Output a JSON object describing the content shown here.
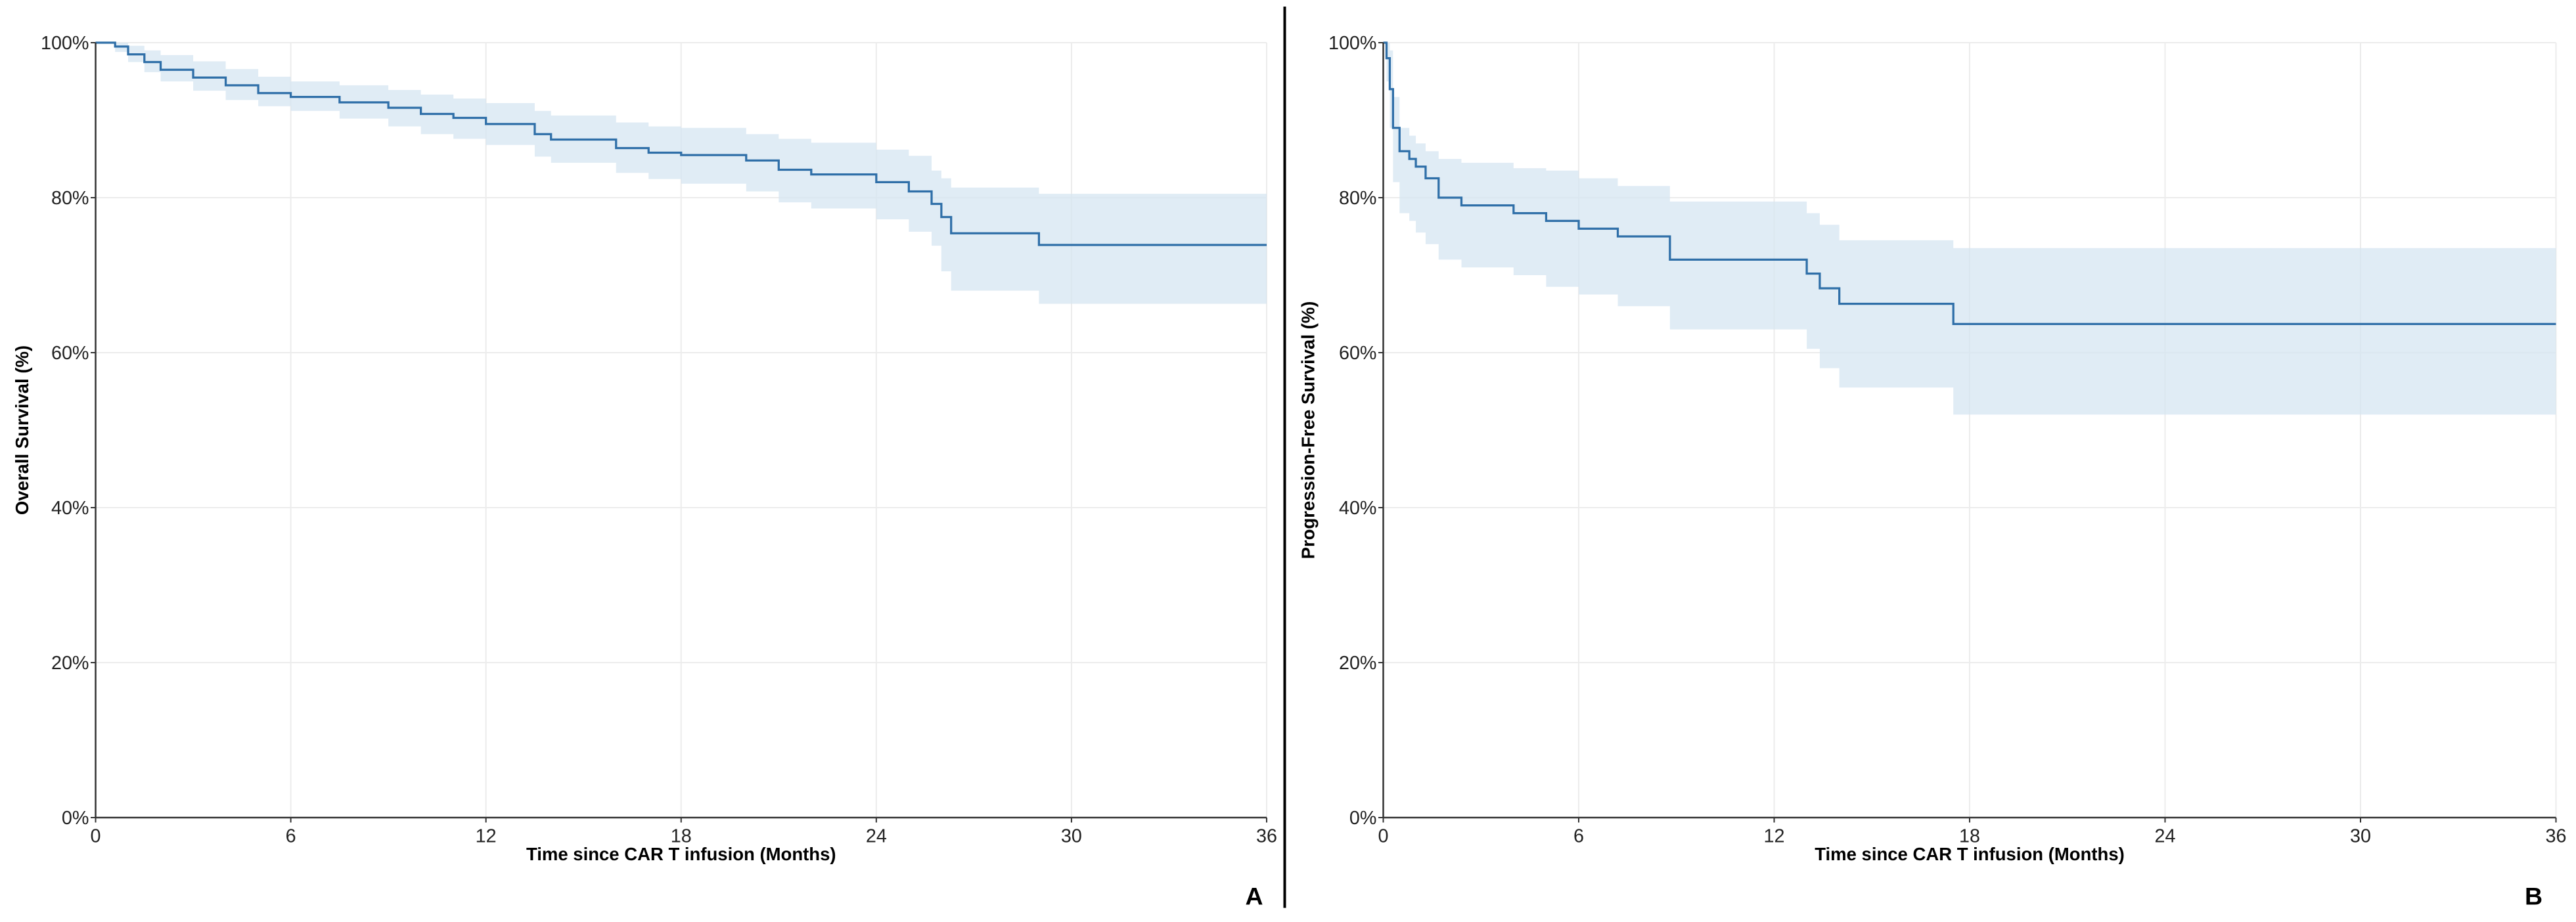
{
  "colors": {
    "line": "#2f6fa8",
    "band": "#d6e5f2",
    "grid": "#ececec",
    "axis": "#333333"
  },
  "chart_data": [
    {
      "type": "line",
      "subtype": "kaplan-meier-step",
      "panel_label": "A",
      "xlabel": "Time since CAR T infusion (Months)",
      "ylabel": "Overall Survival (%)",
      "xlim": [
        0,
        36
      ],
      "ylim": [
        0,
        100
      ],
      "xticks": [
        "0",
        "6",
        "12",
        "18",
        "24",
        "30",
        "36"
      ],
      "yticks": [
        "0%",
        "20%",
        "40%",
        "60%",
        "80%",
        "100%"
      ],
      "grid": true,
      "series": [
        {
          "name": "Overall Survival",
          "time": [
            0,
            0.6,
            1,
            1.5,
            2,
            3,
            4,
            5,
            6,
            7.5,
            9,
            10,
            11,
            12,
            13.5,
            14,
            16,
            17,
            18,
            20,
            21,
            22,
            24,
            25,
            25.7,
            26,
            26.3,
            29,
            36
          ],
          "surv": [
            100,
            99.5,
            98.5,
            97.5,
            96.5,
            95.5,
            94.5,
            93.5,
            93.0,
            92.3,
            91.6,
            90.8,
            90.3,
            89.5,
            88.2,
            87.5,
            86.4,
            85.8,
            85.5,
            84.8,
            83.6,
            83.0,
            82.0,
            80.8,
            79.2,
            77.5,
            75.4,
            73.9,
            73.9
          ],
          "lower": [
            100,
            98.8,
            97.5,
            96.2,
            95,
            93.8,
            92.6,
            91.8,
            91.2,
            90.2,
            89.2,
            88.2,
            87.6,
            86.8,
            85.3,
            84.5,
            83.2,
            82.4,
            81.8,
            80.8,
            79.4,
            78.6,
            77.2,
            75.6,
            73.8,
            70.5,
            68,
            66.3,
            66.3
          ],
          "upper": [
            100,
            100,
            99.6,
            99,
            98.4,
            97.6,
            96.6,
            95.6,
            95.0,
            94.5,
            93.9,
            93.3,
            92.8,
            92.2,
            91.2,
            90.6,
            89.7,
            89.2,
            89.0,
            88.2,
            87.6,
            87.1,
            86.2,
            85.4,
            83.5,
            82.5,
            81.3,
            80.5,
            80.5
          ]
        }
      ]
    },
    {
      "type": "line",
      "subtype": "kaplan-meier-step",
      "panel_label": "B",
      "xlabel": "Time since CAR T infusion (Months)",
      "ylabel": "Progression-Free Survival (%)",
      "xlim": [
        0,
        36
      ],
      "ylim": [
        0,
        100
      ],
      "xticks": [
        "0",
        "6",
        "12",
        "18",
        "24",
        "30",
        "36"
      ],
      "yticks": [
        "0%",
        "20%",
        "40%",
        "60%",
        "80%",
        "100%"
      ],
      "grid": true,
      "series": [
        {
          "name": "Progression-Free Survival",
          "time": [
            0,
            0.1,
            0.2,
            0.3,
            0.5,
            0.8,
            1.0,
            1.3,
            1.7,
            2.4,
            4.0,
            5.0,
            6.0,
            7.2,
            8.8,
            13.0,
            13.4,
            14.0,
            17.5,
            36
          ],
          "surv": [
            100,
            98,
            94,
            89,
            86,
            85,
            84,
            82.5,
            80,
            79,
            78,
            77,
            76,
            75,
            72,
            70.2,
            68.3,
            66.3,
            63.7,
            63.7
          ],
          "lower": [
            100,
            95,
            89,
            82,
            78,
            77,
            75.5,
            74,
            72,
            71,
            70,
            68.5,
            67.5,
            66,
            63,
            60.5,
            58,
            55.5,
            52,
            52
          ],
          "upper": [
            100,
            100,
            99,
            93,
            89,
            88,
            87,
            86,
            85,
            84.5,
            83.8,
            83.5,
            82.5,
            81.5,
            79.5,
            78,
            76.5,
            74.5,
            73.5,
            73.5
          ]
        }
      ]
    }
  ]
}
